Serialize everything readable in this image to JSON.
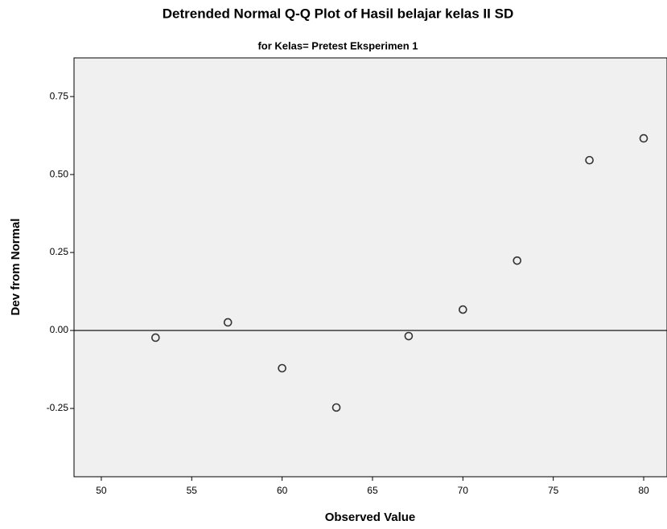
{
  "chart_data": {
    "type": "scatter",
    "title": "Detrended Normal Q-Q Plot of Hasil belajar kelas II SD",
    "subtitle": "for Kelas= Pretest Eksperimen 1",
    "x_label": "Observed Value",
    "y_label": "Dev from Normal",
    "x": [
      53,
      57,
      60,
      63,
      67,
      70,
      73,
      77,
      80
    ],
    "values": [
      -0.023,
      0.026,
      -0.121,
      -0.247,
      -0.018,
      0.067,
      0.224,
      0.546,
      0.616
    ],
    "color": "#333333",
    "xlim": [
      48.49,
      81.29
    ],
    "ylim": [
      -0.469,
      0.874
    ],
    "xticks": [
      50,
      55,
      60,
      65,
      70,
      75,
      80
    ],
    "yticks": [
      {
        "value": 0.75,
        "label": "0.75"
      },
      {
        "value": 0.5,
        "label": "0.50"
      },
      {
        "value": 0.25,
        "label": "0.25"
      },
      {
        "value": 0,
        "label": "0.00"
      },
      {
        "value": -0.25,
        "label": "-0.25"
      }
    ],
    "reference_line": 0,
    "grid": false
  }
}
